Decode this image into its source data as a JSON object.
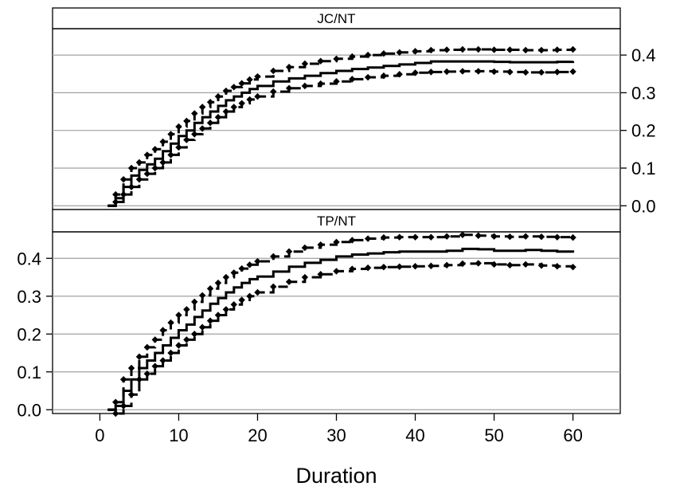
{
  "chart_data": {
    "type": "line",
    "layout": "two stacked panels sharing the x axis",
    "xlabel": "Duration",
    "xlim": [
      -6,
      66
    ],
    "x_ticks": [
      "0",
      "10",
      "20",
      "30",
      "40",
      "50",
      "60"
    ],
    "grid": "horizontal gridlines",
    "series_styles": {
      "estimate": "solid step line",
      "upper": "dashed line with diamond markers",
      "lower": "dashed line with diamond markers"
    },
    "colors": {
      "lines": "#000000",
      "grid": "#a0a0a0",
      "strip": "#ffffff"
    },
    "panels": [
      {
        "strip": "JC/NT",
        "y_axis_side": "right",
        "ylim": [
          -0.01,
          0.47
        ],
        "y_ticks": [
          "0.0",
          "0.1",
          "0.2",
          "0.3",
          "0.4"
        ],
        "x": [
          1,
          2,
          3,
          4,
          5,
          6,
          7,
          8,
          9,
          10,
          11,
          12,
          13,
          14,
          15,
          16,
          17,
          18,
          19,
          20,
          22,
          24,
          26,
          28,
          30,
          32,
          34,
          36,
          38,
          40,
          42,
          44,
          46,
          48,
          50,
          52,
          54,
          56,
          58,
          60
        ],
        "series": [
          {
            "role": "estimate",
            "values": [
              0.0,
              0.02,
              0.05,
              0.08,
              0.095,
              0.11,
              0.125,
              0.145,
              0.165,
              0.185,
              0.2,
              0.22,
              0.235,
              0.25,
              0.265,
              0.28,
              0.29,
              0.3,
              0.31,
              0.318,
              0.33,
              0.338,
              0.345,
              0.352,
              0.358,
              0.363,
              0.367,
              0.371,
              0.375,
              0.379,
              0.383,
              0.383,
              0.383,
              0.383,
              0.382,
              0.381,
              0.381,
              0.381,
              0.382,
              0.384
            ]
          },
          {
            "role": "upper",
            "values": [
              0.0,
              0.03,
              0.07,
              0.1,
              0.115,
              0.135,
              0.15,
              0.17,
              0.19,
              0.21,
              0.225,
              0.245,
              0.262,
              0.275,
              0.29,
              0.305,
              0.315,
              0.325,
              0.335,
              0.343,
              0.358,
              0.368,
              0.377,
              0.384,
              0.39,
              0.396,
              0.4,
              0.404,
              0.407,
              0.41,
              0.413,
              0.414,
              0.415,
              0.415,
              0.414,
              0.414,
              0.413,
              0.413,
              0.414,
              0.415
            ]
          },
          {
            "role": "lower",
            "values": [
              0.0,
              0.01,
              0.03,
              0.05,
              0.07,
              0.085,
              0.1,
              0.115,
              0.135,
              0.155,
              0.175,
              0.19,
              0.205,
              0.22,
              0.235,
              0.25,
              0.262,
              0.272,
              0.282,
              0.29,
              0.303,
              0.312,
              0.318,
              0.324,
              0.33,
              0.336,
              0.341,
              0.345,
              0.349,
              0.353,
              0.355,
              0.356,
              0.357,
              0.357,
              0.356,
              0.355,
              0.354,
              0.354,
              0.355,
              0.356
            ]
          }
        ]
      },
      {
        "strip": "TP/NT",
        "y_axis_side": "left",
        "ylim": [
          -0.01,
          0.47
        ],
        "y_ticks": [
          "0.0",
          "0.1",
          "0.2",
          "0.3",
          "0.4"
        ],
        "x": [
          1,
          2,
          3,
          4,
          5,
          6,
          7,
          8,
          9,
          10,
          11,
          12,
          13,
          14,
          15,
          16,
          17,
          18,
          19,
          20,
          22,
          24,
          26,
          28,
          30,
          32,
          34,
          36,
          38,
          40,
          42,
          44,
          46,
          48,
          50,
          52,
          54,
          56,
          58,
          60
        ],
        "series": [
          {
            "role": "estimate",
            "values": [
              0.0,
              0.01,
              0.05,
              0.08,
              0.11,
              0.13,
              0.15,
              0.17,
              0.19,
              0.21,
              0.225,
              0.245,
              0.262,
              0.28,
              0.295,
              0.31,
              0.323,
              0.335,
              0.345,
              0.352,
              0.365,
              0.378,
              0.388,
              0.396,
              0.405,
              0.41,
              0.413,
              0.416,
              0.418,
              0.418,
              0.418,
              0.42,
              0.425,
              0.424,
              0.42,
              0.42,
              0.422,
              0.42,
              0.418,
              0.415
            ]
          },
          {
            "role": "upper",
            "values": [
              0.0,
              0.02,
              0.08,
              0.11,
              0.14,
              0.165,
              0.185,
              0.21,
              0.23,
              0.25,
              0.265,
              0.285,
              0.302,
              0.32,
              0.335,
              0.35,
              0.362,
              0.373,
              0.383,
              0.392,
              0.405,
              0.418,
              0.428,
              0.436,
              0.443,
              0.448,
              0.452,
              0.455,
              0.456,
              0.456,
              0.456,
              0.458,
              0.462,
              0.46,
              0.458,
              0.457,
              0.458,
              0.457,
              0.456,
              0.455
            ]
          },
          {
            "role": "lower",
            "values": [
              0.0,
              -0.01,
              0.01,
              0.04,
              0.08,
              0.095,
              0.115,
              0.13,
              0.15,
              0.17,
              0.185,
              0.2,
              0.218,
              0.235,
              0.25,
              0.265,
              0.278,
              0.29,
              0.3,
              0.31,
              0.325,
              0.338,
              0.35,
              0.358,
              0.366,
              0.372,
              0.375,
              0.377,
              0.378,
              0.379,
              0.38,
              0.382,
              0.386,
              0.387,
              0.384,
              0.382,
              0.384,
              0.381,
              0.379,
              0.377
            ]
          }
        ]
      }
    ]
  }
}
